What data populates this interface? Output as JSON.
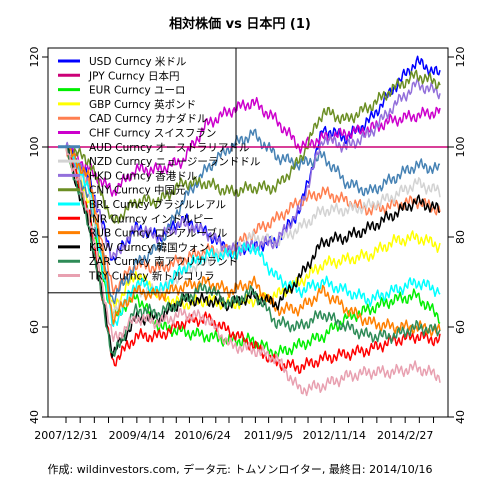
{
  "chart_data": {
    "type": "line",
    "title": "相対株価 vs 日本円 (1)",
    "caption": "作成: wildinvestors.com, データ元: トムソンロイター, 最終日: 2014/10/16",
    "x_tick_labels": [
      "2007/12/31",
      "2009/4/14",
      "2010/6/24",
      "2011/9/5",
      "2012/11/14",
      "2014/2/27"
    ],
    "x_range": [
      "2007-12-31",
      "2014-10-16"
    ],
    "ylim": [
      40,
      122
    ],
    "y_ticks": [
      40,
      60,
      80,
      100,
      120
    ],
    "reference_line": 100,
    "legend_position": "top-left",
    "series": [
      {
        "name": "USD Curncy 米ドル",
        "color": "#0000ff",
        "values": [
          100,
          93,
          75,
          82,
          80,
          84,
          81,
          77,
          78,
          79,
          86,
          104,
          102,
          106,
          113,
          119,
          116
        ]
      },
      {
        "name": "JPY Curncy 日本円",
        "color": "#cc0077",
        "values": [
          100,
          100,
          100,
          100,
          100,
          100,
          100,
          100,
          100,
          100,
          100,
          100,
          100,
          100,
          100,
          100,
          100
        ]
      },
      {
        "name": "EUR Curncy ユーロ",
        "color": "#00ee00",
        "values": [
          100,
          85,
          62,
          67,
          60,
          59,
          58,
          57,
          57,
          54,
          56,
          58,
          62,
          64,
          66,
          67,
          62
        ]
      },
      {
        "name": "GBP Curncy 英ポンド",
        "color": "#ffff00",
        "values": [
          100,
          88,
          64,
          72,
          67,
          65,
          66,
          65,
          66,
          67,
          70,
          74,
          75,
          76,
          79,
          80,
          78
        ]
      },
      {
        "name": "CAD Curncy カナダドル",
        "color": "#ff7f50",
        "values": [
          100,
          92,
          68,
          74,
          73,
          75,
          77,
          77,
          81,
          84,
          88,
          90,
          88,
          86,
          87,
          88,
          86
        ]
      },
      {
        "name": "CHF Curncy スイスフラン",
        "color": "#cc00cc",
        "values": [
          100,
          95,
          90,
          95,
          95,
          97,
          105,
          108,
          110,
          106,
          100,
          102,
          103,
          104,
          106,
          107,
          108
        ]
      },
      {
        "name": "AUD Curncy オーストラリアドル",
        "color": "#4682b4",
        "values": [
          100,
          88,
          66,
          74,
          78,
          88,
          95,
          100,
          103,
          98,
          96,
          98,
          92,
          90,
          93,
          96,
          95
        ]
      },
      {
        "name": "NZD Curncy ニュージーランドドル",
        "color": "#d3d3d3",
        "values": [
          100,
          90,
          63,
          68,
          68,
          72,
          75,
          77,
          80,
          79,
          82,
          86,
          86,
          87,
          89,
          92,
          90
        ]
      },
      {
        "name": "HKD Curncy 香港ドル",
        "color": "#9370db",
        "values": [
          100,
          92,
          75,
          82,
          80,
          83,
          81,
          77,
          78,
          79,
          86,
          102,
          100,
          103,
          109,
          114,
          112
        ]
      },
      {
        "name": "CNY Curncy 中国元",
        "color": "#6b8e23",
        "values": [
          100,
          97,
          83,
          88,
          88,
          92,
          92,
          90,
          91,
          91,
          97,
          108,
          106,
          109,
          113,
          116,
          114
        ]
      },
      {
        "name": "BRL Curncy ブラジルレアル",
        "color": "#00ffff",
        "values": [
          100,
          91,
          60,
          70,
          68,
          73,
          76,
          76,
          78,
          71,
          68,
          70,
          68,
          66,
          68,
          70,
          68
        ]
      },
      {
        "name": "INR Curncy インドルピー",
        "color": "#ff0000",
        "values": [
          100,
          85,
          52,
          58,
          58,
          61,
          62,
          59,
          56,
          52,
          51,
          53,
          54,
          55,
          57,
          58,
          57
        ]
      },
      {
        "name": "RUB Curncy ロシアルーブル",
        "color": "#ff7f00",
        "values": [
          100,
          93,
          62,
          68,
          67,
          69,
          70,
          68,
          70,
          64,
          64,
          68,
          64,
          61,
          60,
          60,
          59
        ]
      },
      {
        "name": "KRW Curncy 韓国ウォン",
        "color": "#000000",
        "values": [
          100,
          82,
          54,
          62,
          62,
          66,
          66,
          65,
          67,
          65,
          71,
          79,
          80,
          82,
          85,
          88,
          86
        ]
      },
      {
        "name": "ZAR Curncy 南アフリカランド",
        "color": "#2e8b57",
        "values": [
          100,
          82,
          53,
          64,
          63,
          66,
          69,
          65,
          68,
          61,
          60,
          63,
          60,
          58,
          58,
          60,
          59
        ]
      },
      {
        "name": "TRY Curncy 新トルコリラ",
        "color": "#e8a0b0",
        "values": [
          100,
          85,
          57,
          62,
          61,
          63,
          62,
          56,
          55,
          53,
          46,
          47,
          49,
          50,
          50,
          51,
          49
        ]
      }
    ]
  }
}
